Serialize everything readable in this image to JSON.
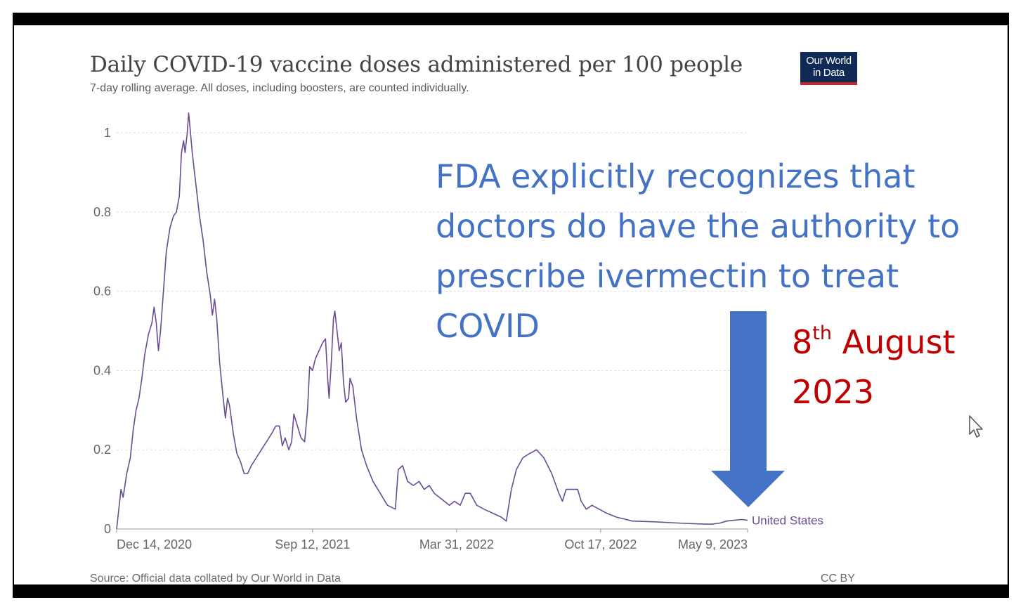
{
  "chart_title": "Daily COVID-19 vaccine doses administered per 100 people",
  "chart_subtitle": "7-day rolling average. All doses, including boosters, are counted individually.",
  "logo": {
    "line1": "Our World",
    "line2": "in Data"
  },
  "source": "Source: Official data collated by Our World in Data",
  "license": "CC BY",
  "annotation": {
    "text": "FDA explicitly recognizes that doctors do have the authority to prescribe ivermectin to treat COVID",
    "date_day": "8",
    "date_suffix": "th",
    "date_month": "August",
    "date_year": "2023"
  },
  "colors": {
    "series": "#6a4c93",
    "annotation": "#4472c4",
    "date": "#c00000",
    "arrow": "#4472c4"
  },
  "chart_data": {
    "type": "line",
    "title": "Daily COVID-19 vaccine doses administered per 100 people",
    "subtitle": "7-day rolling average. All doses, including boosters, are counted individually.",
    "ylim": [
      0,
      1.05
    ],
    "yticks": [
      0,
      0.2,
      0.4,
      0.6,
      0.8,
      1
    ],
    "ytick_labels": [
      "0",
      "0.2",
      "0.4",
      "0.6",
      "0.8",
      "1"
    ],
    "xlim": [
      "2020-12-14",
      "2023-05-09"
    ],
    "xticks": [
      "2020-12-14",
      "2021-09-12",
      "2022-03-31",
      "2022-10-17",
      "2023-05-09"
    ],
    "xtick_labels": [
      "Dec 14, 2020",
      "Sep 12, 2021",
      "Mar 31, 2022",
      "Oct 17, 2022",
      "May 9, 2023"
    ],
    "grid": "horizontal dashed",
    "series": [
      {
        "name": "United States",
        "points": [
          [
            "2020-12-14",
            0.0
          ],
          [
            "2020-12-17",
            0.05
          ],
          [
            "2020-12-20",
            0.1
          ],
          [
            "2020-12-23",
            0.08
          ],
          [
            "2020-12-28",
            0.14
          ],
          [
            "2021-01-02",
            0.18
          ],
          [
            "2021-01-06",
            0.25
          ],
          [
            "2021-01-10",
            0.3
          ],
          [
            "2021-01-14",
            0.33
          ],
          [
            "2021-01-18",
            0.38
          ],
          [
            "2021-01-22",
            0.44
          ],
          [
            "2021-01-27",
            0.49
          ],
          [
            "2021-02-01",
            0.52
          ],
          [
            "2021-02-04",
            0.56
          ],
          [
            "2021-02-07",
            0.52
          ],
          [
            "2021-02-10",
            0.45
          ],
          [
            "2021-02-13",
            0.5
          ],
          [
            "2021-02-17",
            0.6
          ],
          [
            "2021-02-21",
            0.7
          ],
          [
            "2021-02-26",
            0.76
          ],
          [
            "2021-03-03",
            0.79
          ],
          [
            "2021-03-07",
            0.8
          ],
          [
            "2021-03-11",
            0.84
          ],
          [
            "2021-03-14",
            0.95
          ],
          [
            "2021-03-17",
            0.98
          ],
          [
            "2021-03-19",
            0.95
          ],
          [
            "2021-03-22",
            1.0
          ],
          [
            "2021-03-24",
            1.05
          ],
          [
            "2021-03-26",
            1.01
          ],
          [
            "2021-03-29",
            0.95
          ],
          [
            "2021-04-03",
            0.87
          ],
          [
            "2021-04-08",
            0.79
          ],
          [
            "2021-04-13",
            0.73
          ],
          [
            "2021-04-18",
            0.65
          ],
          [
            "2021-04-23",
            0.59
          ],
          [
            "2021-04-26",
            0.54
          ],
          [
            "2021-04-29",
            0.58
          ],
          [
            "2021-05-02",
            0.53
          ],
          [
            "2021-05-06",
            0.42
          ],
          [
            "2021-05-11",
            0.33
          ],
          [
            "2021-05-14",
            0.28
          ],
          [
            "2021-05-17",
            0.33
          ],
          [
            "2021-05-20",
            0.31
          ],
          [
            "2021-05-25",
            0.24
          ],
          [
            "2021-05-30",
            0.19
          ],
          [
            "2021-06-04",
            0.17
          ],
          [
            "2021-06-09",
            0.14
          ],
          [
            "2021-06-14",
            0.14
          ],
          [
            "2021-06-19",
            0.16
          ],
          [
            "2021-06-26",
            0.18
          ],
          [
            "2021-07-03",
            0.2
          ],
          [
            "2021-07-10",
            0.22
          ],
          [
            "2021-07-17",
            0.24
          ],
          [
            "2021-07-23",
            0.26
          ],
          [
            "2021-07-28",
            0.26
          ],
          [
            "2021-08-01",
            0.21
          ],
          [
            "2021-08-05",
            0.23
          ],
          [
            "2021-08-10",
            0.2
          ],
          [
            "2021-08-14",
            0.22
          ],
          [
            "2021-08-17",
            0.29
          ],
          [
            "2021-08-22",
            0.26
          ],
          [
            "2021-08-27",
            0.23
          ],
          [
            "2021-09-01",
            0.22
          ],
          [
            "2021-09-05",
            0.3
          ],
          [
            "2021-09-08",
            0.41
          ],
          [
            "2021-09-12",
            0.4
          ],
          [
            "2021-09-16",
            0.43
          ],
          [
            "2021-09-21",
            0.45
          ],
          [
            "2021-09-26",
            0.47
          ],
          [
            "2021-09-30",
            0.48
          ],
          [
            "2021-10-03",
            0.38
          ],
          [
            "2021-10-05",
            0.33
          ],
          [
            "2021-10-08",
            0.42
          ],
          [
            "2021-10-11",
            0.53
          ],
          [
            "2021-10-13",
            0.55
          ],
          [
            "2021-10-16",
            0.5
          ],
          [
            "2021-10-19",
            0.45
          ],
          [
            "2021-10-22",
            0.47
          ],
          [
            "2021-10-25",
            0.37
          ],
          [
            "2021-10-28",
            0.32
          ],
          [
            "2021-11-01",
            0.33
          ],
          [
            "2021-11-03",
            0.38
          ],
          [
            "2021-11-07",
            0.36
          ],
          [
            "2021-11-12",
            0.28
          ],
          [
            "2021-11-19",
            0.2
          ],
          [
            "2021-11-26",
            0.16
          ],
          [
            "2021-12-05",
            0.12
          ],
          [
            "2021-12-15",
            0.09
          ],
          [
            "2021-12-25",
            0.06
          ],
          [
            "2022-01-05",
            0.05
          ],
          [
            "2022-01-09",
            0.15
          ],
          [
            "2022-01-15",
            0.16
          ],
          [
            "2022-01-22",
            0.12
          ],
          [
            "2022-01-30",
            0.11
          ],
          [
            "2022-02-07",
            0.12
          ],
          [
            "2022-02-14",
            0.1
          ],
          [
            "2022-02-21",
            0.11
          ],
          [
            "2022-02-28",
            0.09
          ],
          [
            "2022-03-07",
            0.08
          ],
          [
            "2022-03-14",
            0.07
          ],
          [
            "2022-03-21",
            0.06
          ],
          [
            "2022-03-28",
            0.07
          ],
          [
            "2022-04-05",
            0.06
          ],
          [
            "2022-04-12",
            0.09
          ],
          [
            "2022-04-19",
            0.09
          ],
          [
            "2022-04-28",
            0.06
          ],
          [
            "2022-05-08",
            0.05
          ],
          [
            "2022-05-20",
            0.04
          ],
          [
            "2022-06-01",
            0.03
          ],
          [
            "2022-06-08",
            0.02
          ],
          [
            "2022-06-15",
            0.1
          ],
          [
            "2022-06-22",
            0.15
          ],
          [
            "2022-07-01",
            0.18
          ],
          [
            "2022-07-10",
            0.19
          ],
          [
            "2022-07-20",
            0.2
          ],
          [
            "2022-07-30",
            0.18
          ],
          [
            "2022-08-10",
            0.14
          ],
          [
            "2022-08-20",
            0.09
          ],
          [
            "2022-08-25",
            0.07
          ],
          [
            "2022-08-30",
            0.1
          ],
          [
            "2022-09-06",
            0.1
          ],
          [
            "2022-09-15",
            0.1
          ],
          [
            "2022-09-20",
            0.07
          ],
          [
            "2022-09-27",
            0.05
          ],
          [
            "2022-10-05",
            0.06
          ],
          [
            "2022-10-15",
            0.05
          ],
          [
            "2022-10-25",
            0.04
          ],
          [
            "2022-11-08",
            0.03
          ],
          [
            "2022-11-30",
            0.02
          ],
          [
            "2023-01-01",
            0.018
          ],
          [
            "2023-02-01",
            0.015
          ],
          [
            "2023-03-01",
            0.013
          ],
          [
            "2023-03-20",
            0.012
          ],
          [
            "2023-04-01",
            0.015
          ],
          [
            "2023-04-10",
            0.02
          ],
          [
            "2023-04-20",
            0.022
          ],
          [
            "2023-05-01",
            0.024
          ],
          [
            "2023-05-09",
            0.022
          ]
        ]
      }
    ]
  }
}
